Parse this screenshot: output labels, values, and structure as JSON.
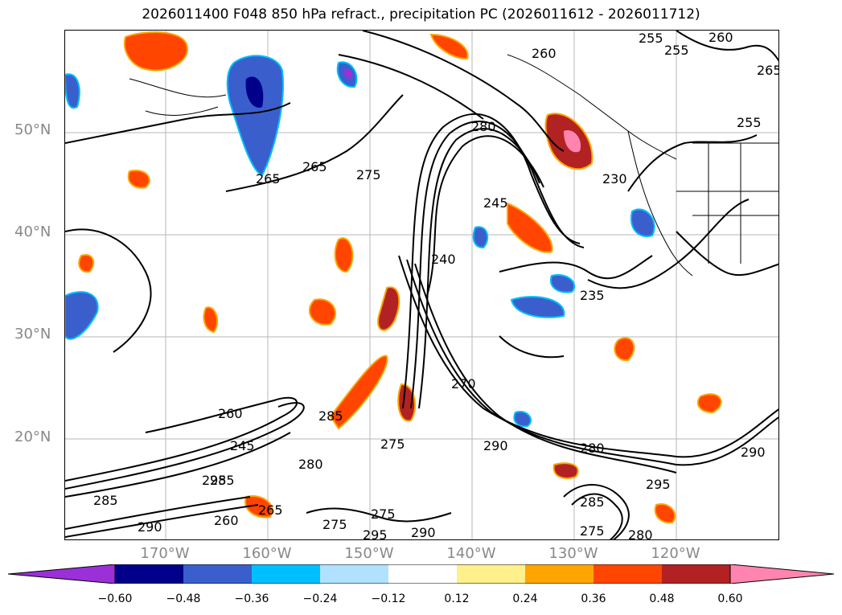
{
  "title": "2026011400 F048 850 hPa refract., precipitation PC (2026011612 - 2026011712)",
  "map": {
    "lat_labels": [
      "50°N",
      "40°N",
      "30°N",
      "20°N"
    ],
    "lon_labels": [
      "170°W",
      "160°W",
      "150°W",
      "140°W",
      "130°W",
      "120°W"
    ],
    "contour_labels": [
      "255",
      "255",
      "260",
      "265",
      "260",
      "255",
      "280",
      "265",
      "265",
      "275",
      "245",
      "230",
      "240",
      "235",
      "270",
      "280",
      "285",
      "260",
      "245",
      "275",
      "290",
      "280",
      "295",
      "285",
      "295",
      "275",
      "290",
      "290",
      "285",
      "275",
      "280",
      "295",
      "290",
      "275",
      "260",
      "265",
      "285"
    ],
    "colors": {
      "contour": "#000000",
      "coast": "#000000",
      "grid": "#999999"
    }
  },
  "colorbar": {
    "tick_labels": [
      "−0.60",
      "−0.48",
      "−0.36",
      "−0.24",
      "−0.12",
      "0.12",
      "0.24",
      "0.36",
      "0.48",
      "0.60"
    ],
    "colors": [
      "#9b30d9",
      "#00008b",
      "#3a5fcd",
      "#00bfff",
      "#b0e2ff",
      "#ffffff",
      "#fff08c",
      "#ffa500",
      "#ff4500",
      "#b22222",
      "#ff85b0"
    ]
  }
}
